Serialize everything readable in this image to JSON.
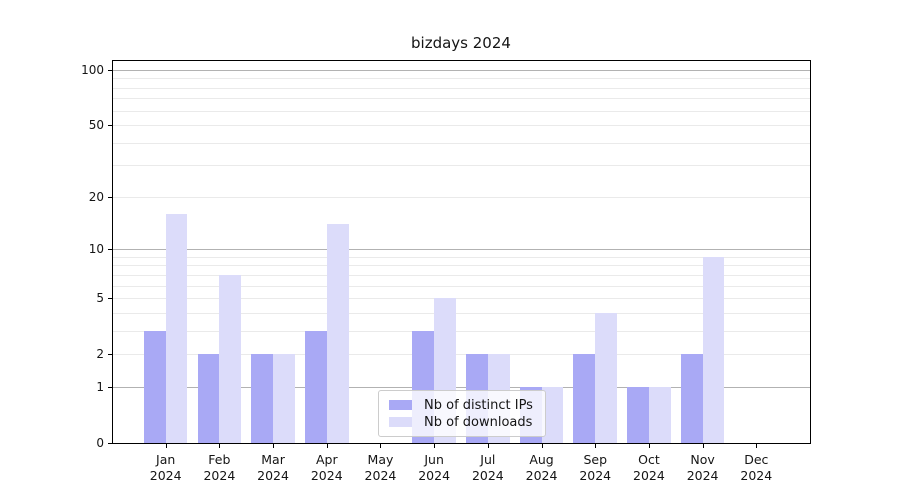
{
  "chart_data": {
    "type": "bar",
    "title": "bizdays 2024",
    "categories": [
      "Jan 2024",
      "Feb 2024",
      "Mar 2024",
      "Apr 2024",
      "May 2024",
      "Jun 2024",
      "Jul 2024",
      "Aug 2024",
      "Sep 2024",
      "Oct 2024",
      "Nov 2024",
      "Dec 2024"
    ],
    "series": [
      {
        "name": "Nb of distinct IPs",
        "color": "#a9a9f5",
        "values": [
          3,
          2,
          2,
          3,
          0,
          3,
          2,
          1,
          2,
          1,
          2,
          0
        ]
      },
      {
        "name": "Nb of downloads",
        "color": "#dcdcfa",
        "values": [
          16,
          7,
          2,
          14,
          0,
          5,
          2,
          1,
          4,
          1,
          9,
          0
        ]
      }
    ],
    "xlabel": "",
    "ylabel": "",
    "yscale": "log1p",
    "ylim": [
      0,
      113
    ],
    "ytick_values": [
      0,
      1,
      2,
      5,
      10,
      20,
      50,
      100
    ],
    "ytick_labels": [
      "0",
      "1",
      "2",
      "5",
      "10",
      "20",
      "50",
      "100"
    ],
    "grid": {
      "major_values": [
        1,
        10,
        100
      ],
      "minor_values": [
        2,
        3,
        4,
        5,
        6,
        7,
        8,
        9,
        20,
        30,
        40,
        50,
        60,
        70,
        80,
        90
      ],
      "major_color": "#b2b2b2",
      "minor_color": "#eaeaea"
    },
    "legend": {
      "location": "lower center",
      "entries": [
        "Nb of distinct IPs",
        "Nb of downloads"
      ]
    }
  }
}
